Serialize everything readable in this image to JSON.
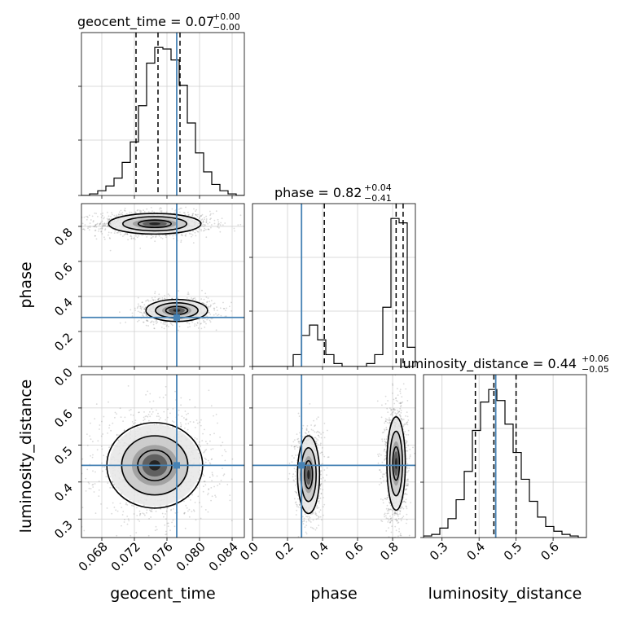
{
  "chart_data": {
    "type": "corner",
    "truth_color": "#4682b4",
    "parameters": [
      "geocent_time",
      "phase",
      "luminosity_distance"
    ],
    "axis_labels": {
      "geocent_time": "geocent_time",
      "phase": "phase",
      "luminosity_distance": "luminosity_distance"
    },
    "ranges": {
      "geocent_time": [
        0.0655,
        0.0855
      ],
      "phase": [
        0.0,
        0.93
      ],
      "luminosity_distance": [
        0.25,
        0.69
      ]
    },
    "ticks": {
      "geocent_time": [
        "0.068",
        "0.072",
        "0.076",
        "0.080",
        "0.084"
      ],
      "phase": [
        "0.0",
        "0.2",
        "0.4",
        "0.6",
        "0.8"
      ],
      "luminosity_distance": [
        "0.3",
        "0.4",
        "0.5",
        "0.6"
      ]
    },
    "truths": {
      "geocent_time": 0.0772,
      "phase": 0.28,
      "luminosity_distance": 0.445
    },
    "titles": {
      "geocent_time": {
        "label": "geocent_time = 0.07",
        "plus": "+0.00",
        "minus": "−0.00"
      },
      "phase": {
        "label": "phase = 0.82",
        "plus": "+0.04",
        "minus": "−0.41"
      },
      "luminosity_distance": {
        "label": "luminosity_distance = 0.44",
        "plus": "+0.06",
        "minus": "−0.05"
      }
    },
    "quantiles": {
      "geocent_time": [
        0.0722,
        0.0749,
        0.0776
      ],
      "phase": [
        0.41,
        0.82,
        0.86
      ],
      "luminosity_distance": [
        0.39,
        0.44,
        0.5
      ]
    },
    "histograms": {
      "geocent_time": {
        "edges": [
          0.0655,
          0.0665,
          0.0675,
          0.0685,
          0.0695,
          0.0705,
          0.0715,
          0.0725,
          0.0735,
          0.0745,
          0.0755,
          0.0765,
          0.0775,
          0.0785,
          0.0795,
          0.0805,
          0.0815,
          0.0825,
          0.0835,
          0.0845,
          0.0855
        ],
        "counts": [
          0.0,
          0.01,
          0.03,
          0.06,
          0.11,
          0.21,
          0.34,
          0.57,
          0.84,
          0.94,
          0.93,
          0.86,
          0.7,
          0.46,
          0.27,
          0.15,
          0.07,
          0.03,
          0.01,
          0.0
        ]
      },
      "phase": {
        "edges": [
          0.0,
          0.0465,
          0.093,
          0.1395,
          0.186,
          0.2325,
          0.279,
          0.3255,
          0.372,
          0.4185,
          0.465,
          0.5115,
          0.558,
          0.6045,
          0.651,
          0.6975,
          0.744,
          0.7905,
          0.837,
          0.8835,
          0.93
        ],
        "counts": [
          0.0,
          0.0,
          0.0,
          0.0,
          0.0,
          0.08,
          0.21,
          0.28,
          0.18,
          0.08,
          0.02,
          0.0,
          0.0,
          0.0,
          0.02,
          0.08,
          0.4,
          1.0,
          0.97,
          0.13
        ]
      },
      "luminosity_distance": {
        "edges": [
          0.25,
          0.272,
          0.294,
          0.316,
          0.338,
          0.36,
          0.382,
          0.404,
          0.426,
          0.448,
          0.47,
          0.492,
          0.514,
          0.536,
          0.558,
          0.58,
          0.602,
          0.624,
          0.646,
          0.668,
          0.69
        ],
        "counts": [
          0.01,
          0.02,
          0.06,
          0.12,
          0.24,
          0.42,
          0.68,
          0.86,
          0.94,
          0.87,
          0.72,
          0.54,
          0.37,
          0.23,
          0.13,
          0.07,
          0.04,
          0.02,
          0.01,
          0.0
        ]
      }
    },
    "clusters": {
      "phase_vs_geocent_time": [
        {
          "mean": [
            0.0745,
            0.815
          ],
          "sd": [
            0.0027,
            0.028
          ]
        },
        {
          "mean": [
            0.0772,
            0.32
          ],
          "sd": [
            0.0018,
            0.03
          ]
        }
      ],
      "luminosity_distance_vs_geocent_time": [
        {
          "mean": [
            0.0745,
            0.445
          ],
          "sd": [
            0.0028,
            0.055
          ]
        }
      ],
      "luminosity_distance_vs_phase": [
        {
          "mean": [
            0.82,
            0.45
          ],
          "sd": [
            0.025,
            0.06
          ]
        },
        {
          "mean": [
            0.32,
            0.42
          ],
          "sd": [
            0.03,
            0.05
          ]
        }
      ]
    }
  }
}
